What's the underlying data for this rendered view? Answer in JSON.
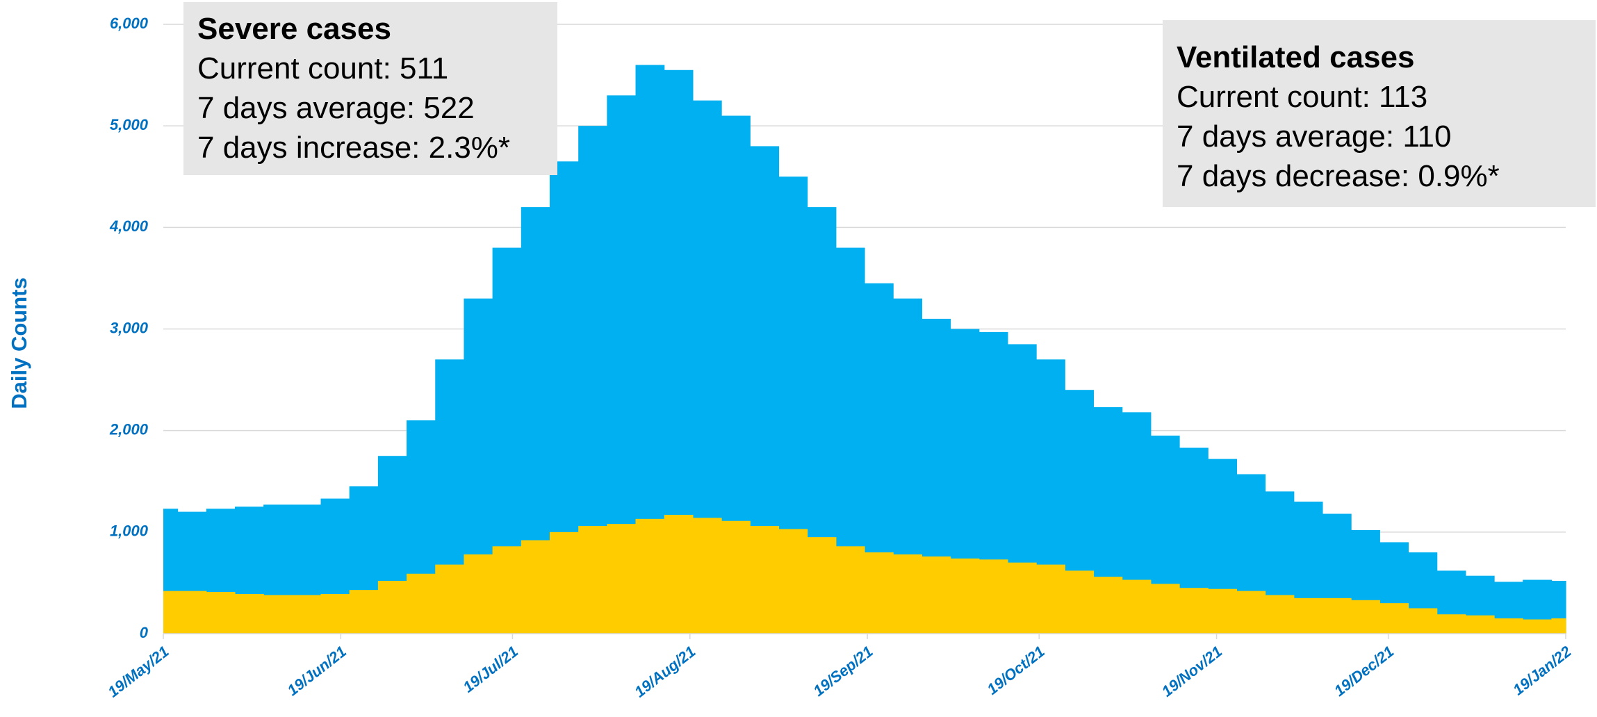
{
  "chart_data": {
    "type": "bar",
    "ylabel": "Daily Counts",
    "x": [
      0,
      5,
      10,
      15,
      20,
      25,
      30,
      35,
      40,
      45,
      50,
      55,
      60,
      65,
      70,
      75,
      80,
      85,
      90,
      95,
      100,
      105,
      110,
      115,
      120,
      125,
      130,
      135,
      140,
      145,
      150,
      155,
      160,
      165,
      170,
      175,
      180,
      185,
      190,
      195,
      200,
      205,
      210,
      215,
      220,
      225,
      230,
      235,
      240,
      245
    ],
    "series": [
      {
        "color": "#00b0f0",
        "values": [
          1230,
          1200,
          1230,
          1250,
          1270,
          1270,
          1330,
          1450,
          1750,
          2100,
          2700,
          3300,
          3800,
          4200,
          4650,
          5000,
          5300,
          5600,
          5550,
          5250,
          5100,
          4800,
          4500,
          4200,
          3800,
          3450,
          3300,
          3100,
          3000,
          2970,
          2850,
          2700,
          2400,
          2230,
          2180,
          1950,
          1830,
          1720,
          1570,
          1400,
          1300,
          1180,
          1020,
          900,
          800,
          620,
          570,
          510,
          530,
          520
        ]
      },
      {
        "color": "#ffcc00",
        "values": [
          420,
          420,
          410,
          390,
          380,
          380,
          390,
          430,
          520,
          590,
          680,
          780,
          860,
          920,
          1000,
          1060,
          1080,
          1130,
          1170,
          1140,
          1110,
          1060,
          1030,
          950,
          860,
          800,
          780,
          760,
          740,
          730,
          700,
          680,
          620,
          560,
          530,
          490,
          450,
          440,
          420,
          380,
          350,
          350,
          330,
          300,
          250,
          190,
          180,
          150,
          140,
          150
        ]
      }
    ],
    "xlim": [
      0,
      245
    ],
    "xticks": [
      {
        "value": 0,
        "label": "19/May/21"
      },
      {
        "value": 31,
        "label": "19/Jun/21"
      },
      {
        "value": 61,
        "label": "19/Jul/21"
      },
      {
        "value": 92,
        "label": "19/Aug/21"
      },
      {
        "value": 123,
        "label": "19/Sep/21"
      },
      {
        "value": 153,
        "label": "19/Oct/21"
      },
      {
        "value": 184,
        "label": "19/Nov/21"
      },
      {
        "value": 214,
        "label": "19/Dec/21"
      },
      {
        "value": 245,
        "label": "19/Jan/22"
      }
    ],
    "ylim": [
      0,
      6000
    ],
    "yticks": [
      0,
      {
        "value": 1000,
        "label": "1,000"
      },
      {
        "value": 2000,
        "label": "2,000"
      },
      {
        "value": 3000,
        "label": "3,000"
      },
      {
        "value": 4000,
        "label": "4,000"
      },
      {
        "value": 5000,
        "label": "5,000"
      },
      {
        "value": 6000,
        "label": "6,000"
      }
    ],
    "grid": true,
    "annotations": [
      {
        "title": "Severe cases",
        "lines": [
          "Current count: 511",
          "7 days average: 522",
          "7 days increase: 2.3%*"
        ]
      },
      {
        "title": "Ventilated cases",
        "lines": [
          "Current count: 113",
          "7 days average: 110",
          "7 days decrease: 0.9%*"
        ]
      }
    ]
  }
}
